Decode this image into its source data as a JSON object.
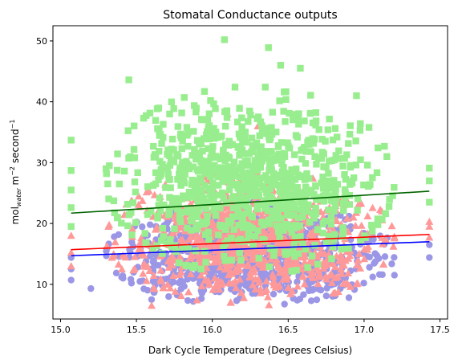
{
  "chart_data": {
    "type": "scatter",
    "title": "Stomatal Conductance outputs",
    "xlabel": "Dark Cycle Temperature (Degrees Celsius)",
    "ylabel_parts": {
      "prefix": "mol",
      "sub": "water",
      "mid": " m",
      "sup1": "−2",
      "mid2": " second",
      "sup2": "−1"
    },
    "xlim": [
      14.95,
      17.55
    ],
    "ylim": [
      4.3,
      52.5
    ],
    "xticks": [
      15.0,
      15.5,
      16.0,
      16.5,
      17.0,
      17.5
    ],
    "xtick_labels": [
      "15.0",
      "15.5",
      "16.0",
      "16.5",
      "17.0",
      "17.5"
    ],
    "yticks": [
      10,
      20,
      30,
      40,
      50
    ],
    "ytick_labels": [
      "10",
      "20",
      "30",
      "40",
      "50"
    ],
    "grid": false,
    "legend": "none",
    "series": [
      {
        "marker": "circle",
        "color": "#9b96e6",
        "cloud": {
          "x_center": 16.25,
          "x_halfwidth": 0.95,
          "y_center": 15.0,
          "y_halfwidth": 8.5
        },
        "edge_points": [
          [
            15.07,
            10.7
          ],
          [
            15.07,
            14.4
          ],
          [
            15.07,
            12.5
          ],
          [
            17.43,
            14.4
          ],
          [
            17.43,
            16.5
          ],
          [
            15.6,
            7.5
          ],
          [
            16.9,
            7.8
          ],
          [
            17.2,
            11.5
          ],
          [
            15.2,
            9.3
          ]
        ]
      },
      {
        "marker": "triangle",
        "color": "#ff9999",
        "cloud": {
          "x_center": 16.25,
          "x_halfwidth": 0.95,
          "y_center": 17.5,
          "y_halfwidth": 11.0
        },
        "edge_points": [
          [
            15.07,
            15.2
          ],
          [
            15.07,
            18.0
          ],
          [
            15.07,
            13.0
          ],
          [
            17.43,
            20.3
          ],
          [
            17.43,
            17.7
          ],
          [
            17.43,
            19.5
          ],
          [
            16.3,
            36.0
          ],
          [
            16.1,
            33.5
          ],
          [
            15.6,
            6.5
          ],
          [
            16.1,
            38.0
          ]
        ]
      },
      {
        "marker": "square",
        "color": "#98ee8e",
        "cloud": {
          "x_center": 16.25,
          "x_halfwidth": 0.95,
          "y_center": 27.0,
          "y_halfwidth": 15.5
        },
        "edge_points": [
          [
            15.07,
            33.7
          ],
          [
            15.07,
            28.7
          ],
          [
            15.07,
            25.5
          ],
          [
            15.07,
            22.6
          ],
          [
            15.07,
            19.5
          ],
          [
            17.43,
            29.1
          ],
          [
            17.43,
            23.5
          ],
          [
            17.43,
            27.0
          ],
          [
            16.08,
            50.2
          ],
          [
            16.37,
            48.9
          ],
          [
            15.45,
            43.6
          ],
          [
            16.45,
            46.0
          ],
          [
            16.58,
            45.5
          ],
          [
            16.95,
            41.0
          ],
          [
            15.3,
            29.0
          ],
          [
            17.15,
            31.0
          ]
        ]
      }
    ],
    "trend_lines": [
      {
        "color": "#006400",
        "x": [
          15.07,
          17.43
        ],
        "y": [
          21.7,
          25.3
        ]
      },
      {
        "color": "#ff0000",
        "x": [
          15.07,
          17.43
        ],
        "y": [
          15.7,
          18.2
        ]
      },
      {
        "color": "#0000ff",
        "x": [
          15.07,
          17.43
        ],
        "y": [
          14.7,
          17.0
        ]
      }
    ]
  }
}
